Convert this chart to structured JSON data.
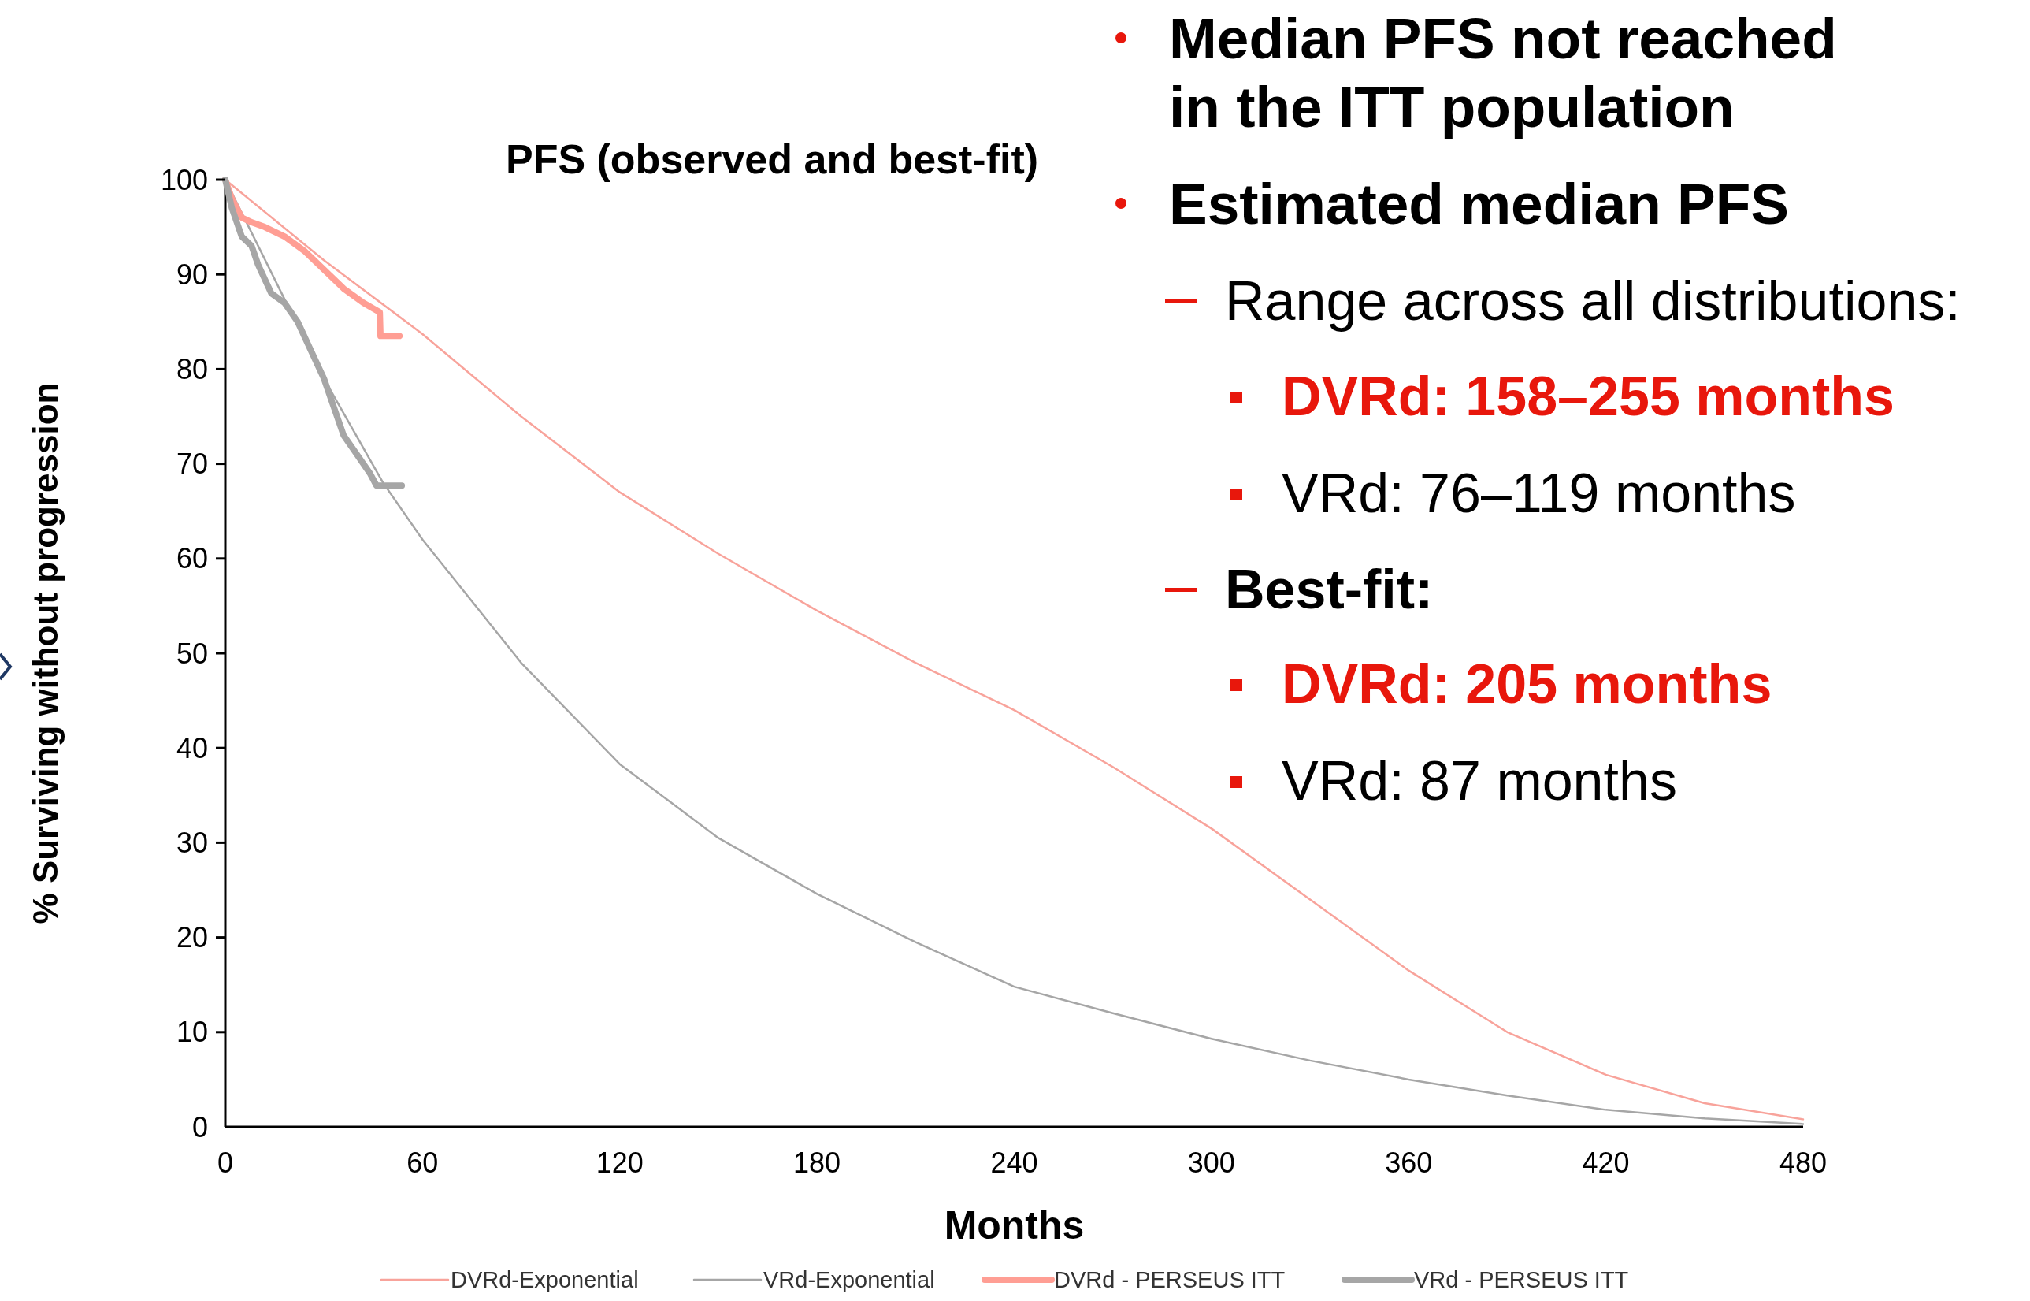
{
  "chart_data": {
    "type": "line",
    "title": "PFS (observed and best-fit)",
    "xlabel": "Months",
    "ylabel": "% Surviving without progression",
    "xlim": [
      0,
      480
    ],
    "xticks": [
      0,
      60,
      120,
      180,
      240,
      300,
      360,
      420,
      480
    ],
    "ylim": [
      0,
      100
    ],
    "yticks": [
      0,
      10,
      20,
      30,
      40,
      50,
      60,
      70,
      80,
      90,
      100
    ],
    "grid": false,
    "legend": "bottom",
    "line_style": "solid",
    "marker": "none",
    "series": [
      {
        "name": "DVRd-Exponential",
        "color": "#f8a39b",
        "x": [
          0,
          30,
          60,
          90,
          120,
          150,
          180,
          210,
          240,
          270,
          300,
          330,
          360,
          390,
          420,
          450,
          480
        ],
        "values": [
          100,
          91.5,
          83.7,
          75,
          67,
          60.5,
          54.5,
          49,
          44,
          38,
          31.5,
          24,
          16.5,
          10,
          5.5,
          2.5,
          0.8
        ]
      },
      {
        "name": "VRd-Exponential",
        "color": "#a6a6a6",
        "x": [
          0,
          30,
          48,
          60,
          90,
          120,
          150,
          180,
          210,
          240,
          270,
          300,
          330,
          360,
          390,
          420,
          450,
          480
        ],
        "values": [
          100,
          79,
          68,
          62,
          49,
          38.3,
          30.5,
          24.6,
          19.5,
          14.8,
          12,
          9.3,
          7,
          5,
          3.3,
          1.8,
          0.9,
          0.3
        ]
      },
      {
        "name": "DVRd - PERSEUS ITT",
        "color": "#ff9e94",
        "x": [
          0,
          2,
          5,
          8,
          12,
          18,
          24,
          30,
          36,
          42,
          47,
          47.2,
          53
        ],
        "values": [
          100,
          98,
          96,
          95.5,
          95,
          94,
          92.5,
          90.5,
          88.5,
          87,
          86,
          83.5,
          83.5
        ]
      },
      {
        "name": "VRd - PERSEUS ITT",
        "color": "#a6a6a6",
        "x": [
          0,
          2,
          5,
          8,
          10,
          14,
          18,
          22,
          26,
          30,
          33,
          36,
          40,
          44,
          46,
          53.7
        ],
        "values": [
          100,
          97,
          94,
          93,
          91,
          88,
          87,
          85,
          82,
          79,
          76,
          73,
          71,
          69,
          67.7,
          67.7
        ]
      }
    ],
    "annotations": [
      "Median PFS not reached in the ITT population",
      "Estimated median PFS",
      "Range across all distributions:",
      "DVRd: 158–255 months",
      "VRd: 76–119 months",
      "Best-fit:",
      "DVRd: 205 months",
      "VRd: 87 months"
    ]
  }
}
